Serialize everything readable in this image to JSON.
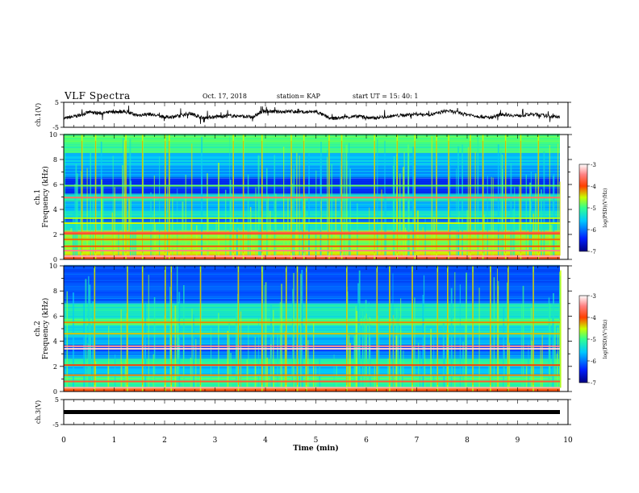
{
  "header": {
    "title": "VLF Spectra",
    "date": "Oct. 17, 2018",
    "station": "station= KAP",
    "start": "start  UT =   15: 40: 1"
  },
  "chart_data": [
    {
      "type": "line",
      "panel": "ch1-waveform",
      "ylabel": "ch.1(V)",
      "ylim": [
        -5,
        5
      ],
      "yticks": [
        "5",
        "-5"
      ],
      "xlim": [
        0,
        10
      ],
      "line_color": "#000000",
      "x": [
        0,
        0.25,
        0.5,
        0.75,
        1.0,
        1.2,
        1.45,
        1.7,
        2.0,
        2.25,
        2.5,
        2.75,
        3.0,
        3.25,
        3.5,
        3.75,
        3.95,
        4.2,
        4.5,
        4.75,
        5.0,
        5.3,
        5.6,
        5.9,
        6.1,
        6.4,
        6.7,
        7.0,
        7.3,
        7.6,
        7.9,
        8.2,
        8.45,
        8.7,
        9.0,
        9.3,
        9.6,
        9.84
      ],
      "values": [
        -1.5,
        -0.5,
        1.0,
        0.6,
        1.2,
        1.3,
        -0.2,
        0.3,
        -1.0,
        -0.6,
        0.6,
        -1.2,
        -0.8,
        -0.4,
        -0.5,
        -1.0,
        1.5,
        1.2,
        1.4,
        1.0,
        1.3,
        -1.6,
        -0.9,
        -0.6,
        -1.4,
        -0.7,
        -0.2,
        0.3,
        0.1,
        1.6,
        0.5,
        -0.5,
        -1.2,
        0.3,
        -0.4,
        0.2,
        -0.5,
        -1.0
      ]
    },
    {
      "type": "heatmap",
      "panel": "ch1-spectrogram",
      "ylabel": "ch.1 Frequency (kHz)",
      "ylim": [
        0,
        10
      ],
      "yticks": [
        "0",
        "2",
        "4",
        "6",
        "8",
        "10"
      ],
      "xlim": [
        0,
        10
      ],
      "data_extent_min": 9.84,
      "colorbar": {
        "label": "log(PSD)(V²/Hz)",
        "range": [
          -7,
          -3
        ],
        "ticks": [
          "-3",
          "-4",
          "-5",
          "-6",
          "-7"
        ]
      },
      "bands": [
        {
          "from": 0,
          "to": 0.35,
          "level": 0.8
        },
        {
          "from": 0.35,
          "to": 0.9,
          "level": 0.62
        },
        {
          "from": 0.9,
          "to": 1.5,
          "level": 0.55
        },
        {
          "from": 1.5,
          "to": 2.3,
          "level": 0.58
        },
        {
          "from": 2.3,
          "to": 2.9,
          "level": 0.4
        },
        {
          "from": 2.9,
          "to": 3.3,
          "level": 0.22
        },
        {
          "from": 3.3,
          "to": 3.9,
          "level": 0.4
        },
        {
          "from": 3.9,
          "to": 4.6,
          "level": 0.33
        },
        {
          "from": 4.6,
          "to": 5.2,
          "level": 0.45
        },
        {
          "from": 5.2,
          "to": 6.5,
          "level": 0.18
        },
        {
          "from": 6.5,
          "to": 7.5,
          "level": 0.3
        },
        {
          "from": 7.5,
          "to": 8.5,
          "level": 0.36
        },
        {
          "from": 8.5,
          "to": 9.0,
          "level": 0.48
        },
        {
          "from": 9.0,
          "to": 10,
          "level": 0.52
        }
      ],
      "lines": [
        {
          "freq": 0.25,
          "level": 0.92
        },
        {
          "freq": 0.7,
          "level": 0.88
        },
        {
          "freq": 1.05,
          "level": 0.74
        },
        {
          "freq": 1.6,
          "level": 0.72
        },
        {
          "freq": 2.05,
          "level": 0.78
        },
        {
          "freq": 2.15,
          "level": 0.82
        },
        {
          "freq": 2.9,
          "level": 0.62
        },
        {
          "freq": 3.3,
          "level": 0.6
        },
        {
          "freq": 4.95,
          "level": 0.85
        },
        {
          "freq": 5.9,
          "level": 0.55
        }
      ],
      "bursts": [
        0.35,
        0.62,
        1.22,
        1.55,
        2.0,
        2.08,
        3.35,
        3.55,
        3.92,
        4.5,
        4.75,
        5.25,
        5.5,
        6.15,
        6.6,
        6.95,
        7.38,
        7.62,
        8.05,
        8.3,
        8.75,
        9.05,
        9.4
      ]
    },
    {
      "type": "heatmap",
      "panel": "ch2-spectrogram",
      "ylabel": "ch.2 Frequency (kHz)",
      "ylim": [
        0,
        10
      ],
      "yticks": [
        "0",
        "2",
        "4",
        "6",
        "8",
        "10"
      ],
      "xlim": [
        0,
        10
      ],
      "data_extent_min": 9.84,
      "colorbar": {
        "label": "log(PSD)(V²/Hz)",
        "range": [
          -7,
          -3
        ],
        "ticks": [
          "-3",
          "-4",
          "-5",
          "-6",
          "-7"
        ]
      },
      "bands": [
        {
          "from": 0,
          "to": 0.3,
          "level": 0.78
        },
        {
          "from": 0.3,
          "to": 1.2,
          "level": 0.5
        },
        {
          "from": 1.2,
          "to": 2.0,
          "level": 0.35
        },
        {
          "from": 2.0,
          "to": 2.6,
          "level": 0.45
        },
        {
          "from": 2.6,
          "to": 3.2,
          "level": 0.28
        },
        {
          "from": 3.2,
          "to": 3.7,
          "level": 0.18
        },
        {
          "from": 3.7,
          "to": 4.3,
          "level": 0.32
        },
        {
          "from": 4.3,
          "to": 5.2,
          "level": 0.4
        },
        {
          "from": 5.2,
          "to": 5.8,
          "level": 0.5
        },
        {
          "from": 5.8,
          "to": 7.0,
          "level": 0.42
        },
        {
          "from": 7.0,
          "to": 10,
          "level": 0.22
        }
      ],
      "lines": [
        {
          "freq": 0.3,
          "level": 0.92
        },
        {
          "freq": 0.8,
          "level": 0.8
        },
        {
          "freq": 1.3,
          "level": 0.7
        },
        {
          "freq": 2.1,
          "level": 0.75
        },
        {
          "freq": 3.4,
          "level": 0.96
        },
        {
          "freq": 3.6,
          "level": 0.9
        },
        {
          "freq": 4.6,
          "level": 0.66
        },
        {
          "freq": 5.5,
          "level": 0.7
        }
      ],
      "bursts": [
        0.6,
        1.25,
        1.55,
        2.0,
        2.12,
        2.7,
        3.45,
        3.92,
        4.4,
        4.62,
        4.8,
        5.6,
        6.2,
        6.45,
        6.9,
        7.4,
        7.6,
        8.1,
        8.45,
        8.8,
        9.3
      ]
    },
    {
      "type": "line",
      "panel": "ch3-waveform",
      "ylabel": "ch.3(V)",
      "ylim": [
        -5,
        5
      ],
      "yticks": [
        "5",
        "-5"
      ],
      "xlim": [
        0,
        10
      ],
      "line_color": "#000000",
      "x": [
        0,
        9.84
      ],
      "values": [
        0,
        0
      ]
    }
  ],
  "x_axis": {
    "label": "Time (min)",
    "ticks": [
      "0",
      "1",
      "2",
      "3",
      "4",
      "5",
      "6",
      "7",
      "8",
      "9",
      "10"
    ]
  }
}
